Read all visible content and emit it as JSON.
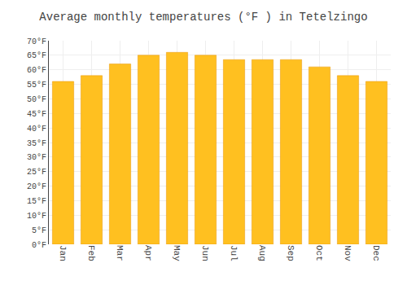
{
  "chart_data": {
    "type": "bar",
    "title": "Average monthly temperatures (°F ) in Tetelzingo",
    "categories": [
      "Jan",
      "Feb",
      "Mar",
      "Apr",
      "May",
      "Jun",
      "Jul",
      "Aug",
      "Sep",
      "Oct",
      "Nov",
      "Dec"
    ],
    "values": [
      56,
      58,
      62,
      65,
      66,
      65,
      63.5,
      63.5,
      63.5,
      61,
      58,
      56
    ],
    "color": "#FFC020",
    "ylim": [
      0,
      70
    ],
    "yticks": [
      {
        "value": 0,
        "label": "0°F"
      },
      {
        "value": 5,
        "label": "5°F"
      },
      {
        "value": 10,
        "label": "10°F"
      },
      {
        "value": 15,
        "label": "15°F"
      },
      {
        "value": 20,
        "label": "20°F"
      },
      {
        "value": 25,
        "label": "25°F"
      },
      {
        "value": 30,
        "label": "30°F"
      },
      {
        "value": 35,
        "label": "35°F"
      },
      {
        "value": 40,
        "label": "40°F"
      },
      {
        "value": 45,
        "label": "45°F"
      },
      {
        "value": 50,
        "label": "50°F"
      },
      {
        "value": 55,
        "label": "55°F"
      },
      {
        "value": 60,
        "label": "60°F"
      },
      {
        "value": 65,
        "label": "65°F"
      },
      {
        "value": 70,
        "label": "70°F"
      }
    ],
    "grid": true
  }
}
